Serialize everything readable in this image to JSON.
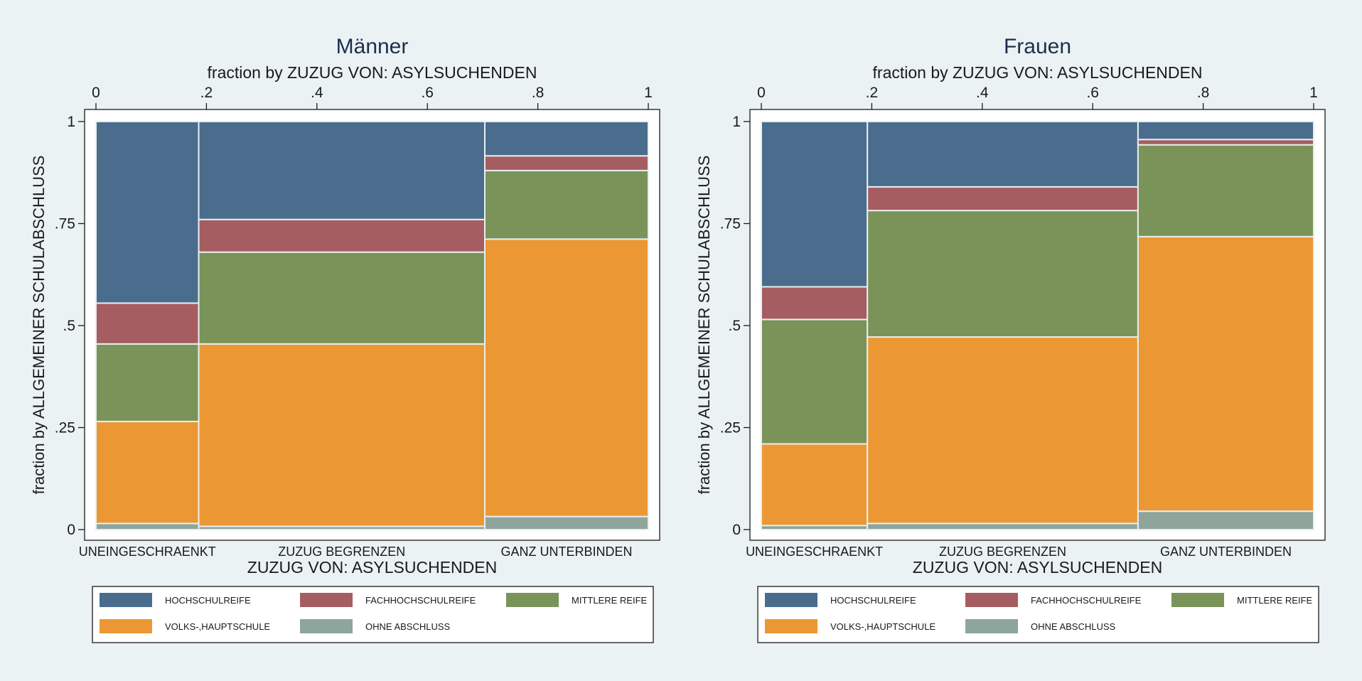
{
  "chart_data": [
    {
      "type": "mosaic",
      "title": "Männer",
      "top_axis_label": "fraction by ZUZUG VON: ASYLSUCHENDEN",
      "xlabel": "ZUZUG VON: ASYLSUCHENDEN",
      "ylabel": "fraction by ALLGEMEINER SCHULABSCHLUSS",
      "x_ticks": [
        "0",
        ".2",
        ".4",
        ".6",
        ".8",
        "1"
      ],
      "y_ticks": [
        "0",
        ".25",
        ".5",
        ".75",
        "1"
      ],
      "x_range": [
        0,
        1
      ],
      "y_range": [
        0,
        1
      ],
      "categories": [
        "UNEINGESCHRAENKT",
        "ZUZUG BEGRENZEN",
        "GANZ UNTERBINDEN"
      ],
      "category_widths": [
        0.186,
        0.518,
        0.296
      ],
      "series": [
        {
          "name": "OHNE ABSCHLUSS",
          "values": [
            0.015,
            0.008,
            0.032
          ]
        },
        {
          "name": "VOLKS-,HAUPTSCHULE",
          "values": [
            0.25,
            0.447,
            0.68
          ]
        },
        {
          "name": "MITTLERE REIFE",
          "values": [
            0.19,
            0.225,
            0.168
          ]
        },
        {
          "name": "FACHHOCHSCHULREIFE",
          "values": [
            0.1,
            0.08,
            0.036
          ]
        },
        {
          "name": "HOCHSCHULREIFE",
          "values": [
            0.445,
            0.24,
            0.084
          ]
        }
      ],
      "legend_position": "bottom",
      "legend_order": [
        "HOCHSCHULREIFE",
        "FACHHOCHSCHULREIFE",
        "MITTLERE REIFE",
        "VOLKS-,HAUPTSCHULE",
        "OHNE ABSCHLUSS"
      ],
      "grid": false
    },
    {
      "type": "mosaic",
      "title": "Frauen",
      "top_axis_label": "fraction by ZUZUG VON: ASYLSUCHENDEN",
      "xlabel": "ZUZUG VON: ASYLSUCHENDEN",
      "ylabel": "fraction by ALLGEMEINER SCHULABSCHLUSS",
      "x_ticks": [
        "0",
        ".2",
        ".4",
        ".6",
        ".8",
        "1"
      ],
      "y_ticks": [
        "0",
        ".25",
        ".5",
        ".75",
        "1"
      ],
      "x_range": [
        0,
        1
      ],
      "y_range": [
        0,
        1
      ],
      "categories": [
        "UNEINGESCHRAENKT",
        "ZUZUG BEGRENZEN",
        "GANZ UNTERBINDEN"
      ],
      "category_widths": [
        0.192,
        0.49,
        0.318
      ],
      "series": [
        {
          "name": "OHNE ABSCHLUSS",
          "values": [
            0.01,
            0.015,
            0.045
          ]
        },
        {
          "name": "VOLKS-,HAUPTSCHULE",
          "values": [
            0.2,
            0.457,
            0.673
          ]
        },
        {
          "name": "MITTLERE REIFE",
          "values": [
            0.305,
            0.31,
            0.225
          ]
        },
        {
          "name": "FACHHOCHSCHULREIFE",
          "values": [
            0.08,
            0.058,
            0.013
          ]
        },
        {
          "name": "HOCHSCHULREIFE",
          "values": [
            0.405,
            0.16,
            0.044
          ]
        }
      ],
      "legend_position": "bottom",
      "legend_order": [
        "HOCHSCHULREIFE",
        "FACHHOCHSCHULREIFE",
        "MITTLERE REIFE",
        "VOLKS-,HAUPTSCHULE",
        "OHNE ABSCHLUSS"
      ],
      "grid": false
    }
  ],
  "colors": {
    "HOCHSCHULREIFE": "#4a6d8e",
    "FACHHOCHSCHULREIFE": "#a65d61",
    "MITTLERE REIFE": "#7a9359",
    "VOLKS-,HAUPTSCHULE": "#eb9834",
    "OHNE ABSCHLUSS": "#8ea59b",
    "background": "#eaf2f3",
    "plot_background": "#ffffff",
    "text": "#1a1a1a",
    "title": "#1e2e4c",
    "divider": "#e8eeee"
  }
}
